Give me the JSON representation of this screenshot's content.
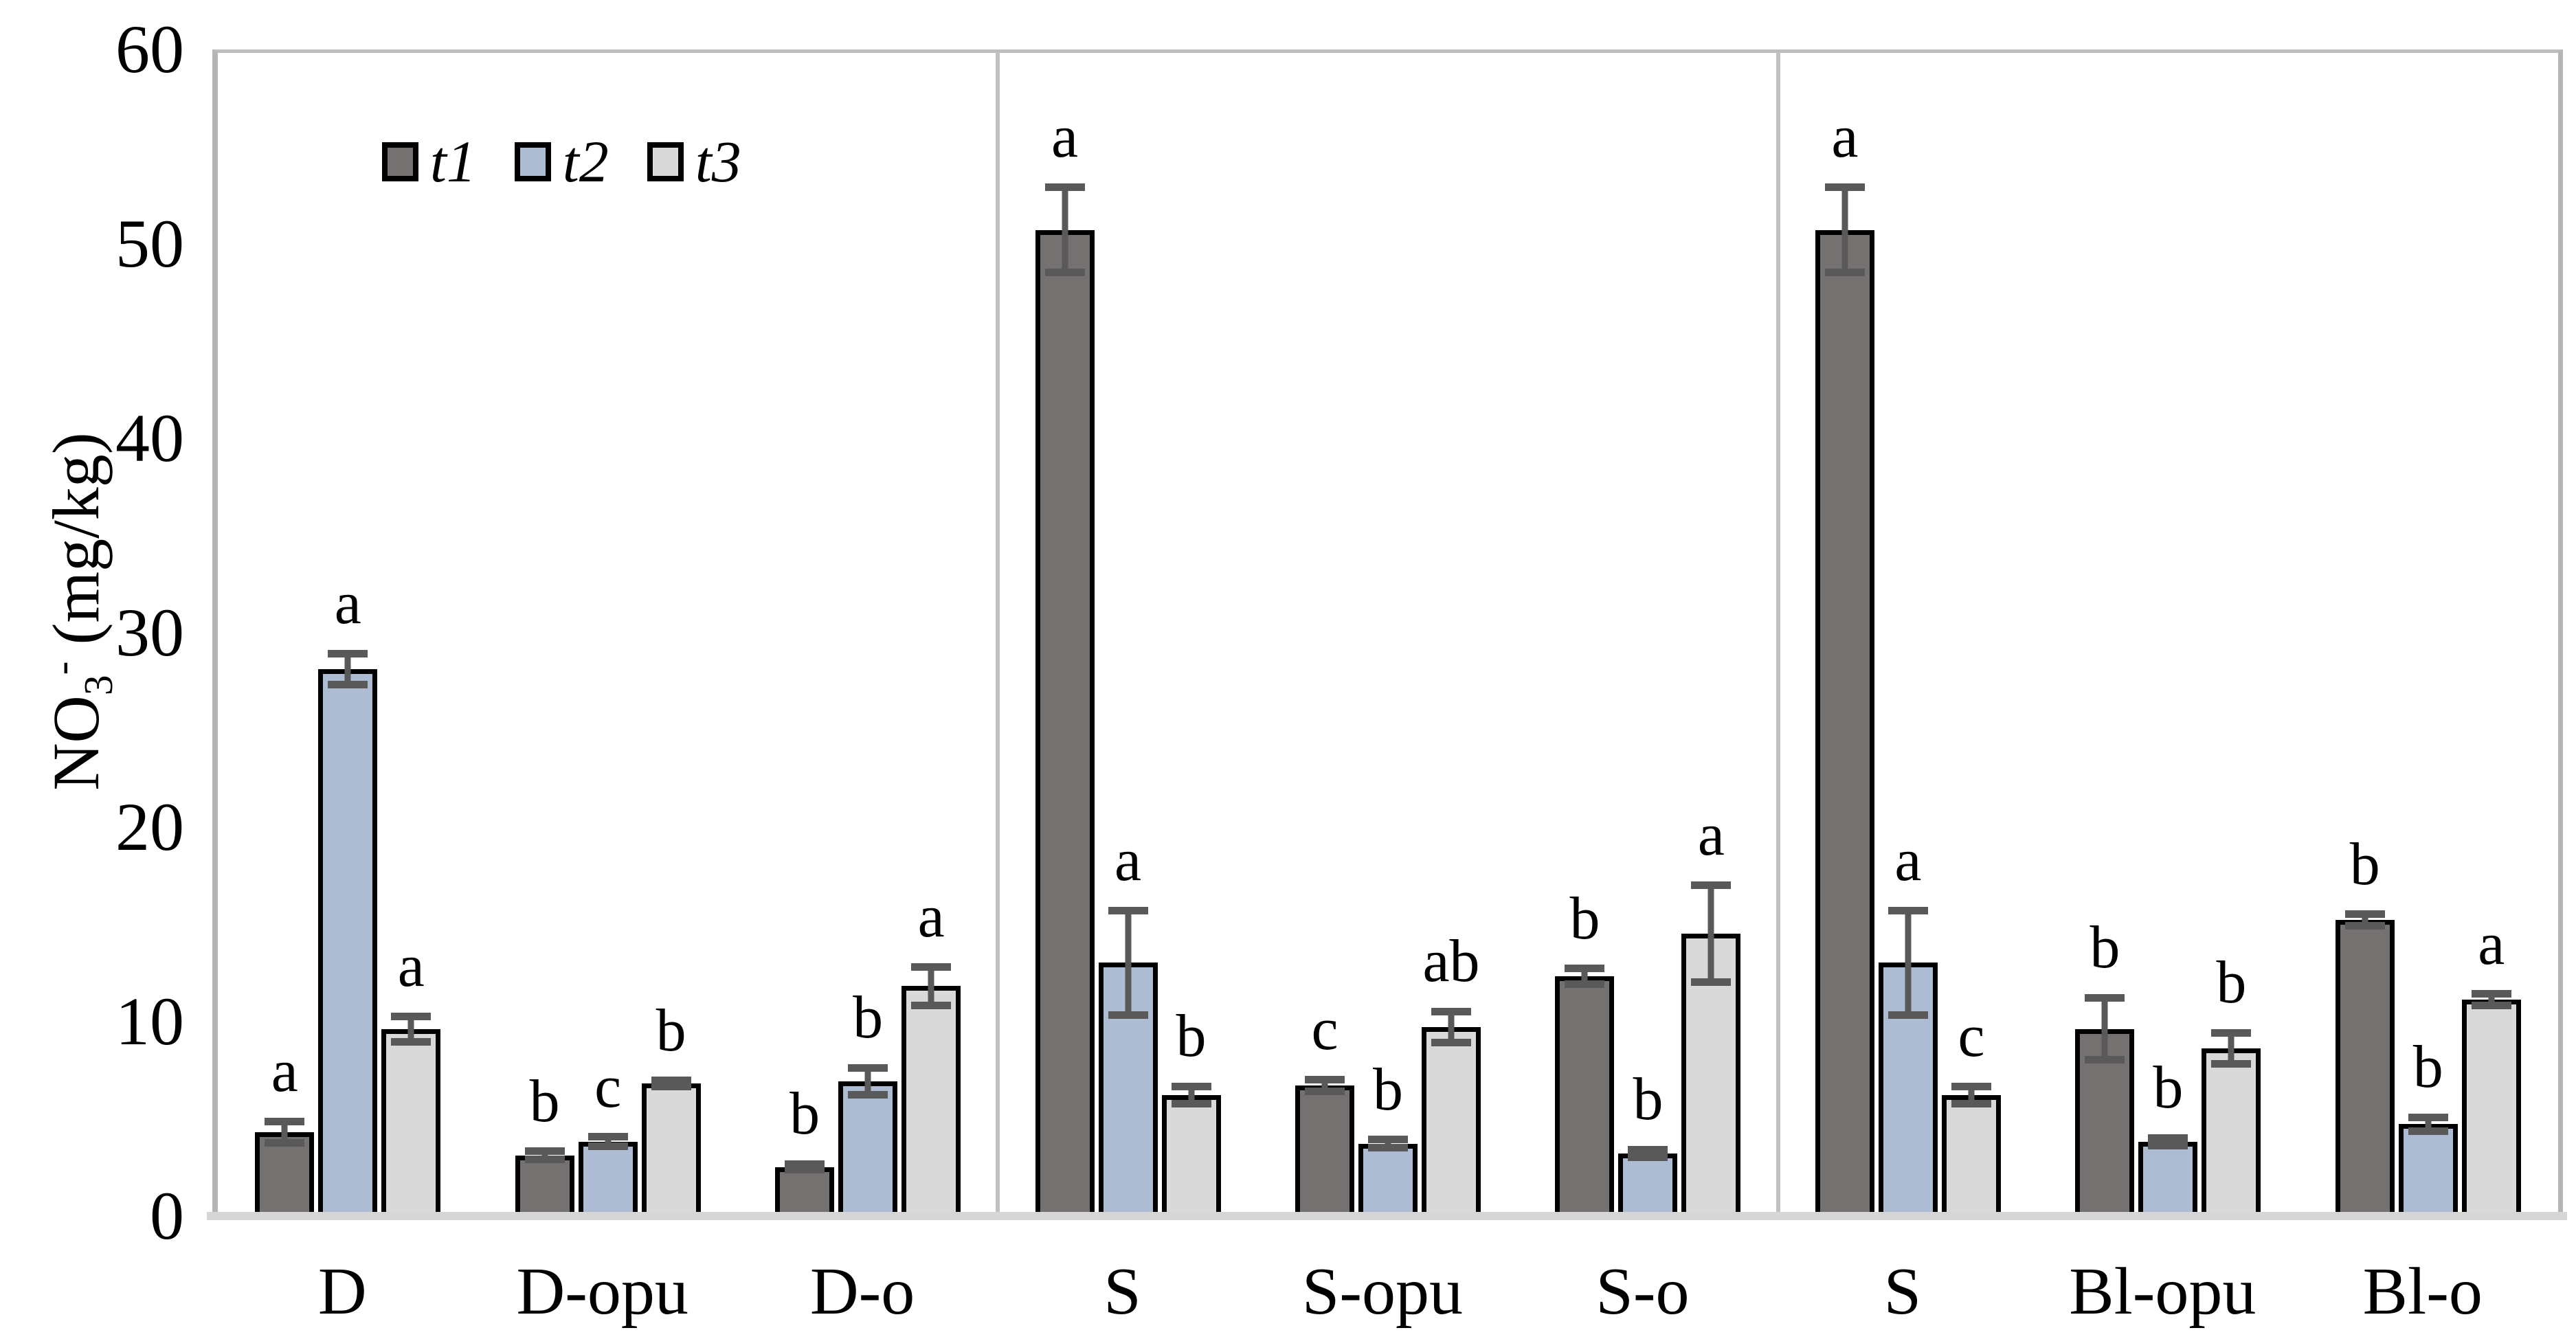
{
  "figure": {
    "background": "#ffffff",
    "text_color": "#000000"
  },
  "chart_data": {
    "type": "bar",
    "title": "",
    "xlabel": "",
    "ylabel": "NO3- (mg/kg)",
    "ylabel_parts": {
      "base": "NO",
      "sub": "3",
      "sup": "-",
      "unit": " (mg/kg)"
    },
    "ylim": [
      0,
      60
    ],
    "yticks": [
      0,
      10,
      20,
      30,
      40,
      50,
      60
    ],
    "grid": "off",
    "legend_position": "top-left-inside",
    "error_bars": true,
    "colors": {
      "t1": "#767171",
      "t2": "#aebcd3",
      "t3": "#d9d9d9",
      "bar_border": "#000000",
      "error_bar": "#595959",
      "frame": "#b5b5b5",
      "baseline": "#d6d6d6",
      "divider": "#c2c2c2"
    },
    "legend": [
      {
        "name": "t1",
        "color": "#767171"
      },
      {
        "name": "t2",
        "color": "#aebcd3"
      },
      {
        "name": "t3",
        "color": "#d9d9d9"
      }
    ],
    "panels": [
      {
        "groups": [
          {
            "label": "D",
            "bars": [
              {
                "series": "t1",
                "value": 4.5,
                "err": 0.55,
                "letter": "a"
              },
              {
                "series": "t2",
                "value": 28.3,
                "err": 0.8,
                "letter": "a"
              },
              {
                "series": "t3",
                "value": 9.8,
                "err": 0.65,
                "letter": "a"
              }
            ]
          },
          {
            "label": "D-opu",
            "bars": [
              {
                "series": "t1",
                "value": 3.3,
                "err": 0.2,
                "letter": "b"
              },
              {
                "series": "t2",
                "value": 4.0,
                "err": 0.25,
                "letter": "c"
              },
              {
                "series": "t3",
                "value": 7.0,
                "err": 0.15,
                "letter": "b"
              }
            ]
          },
          {
            "label": "D-o",
            "bars": [
              {
                "series": "t1",
                "value": 2.7,
                "err": 0.15,
                "letter": "b"
              },
              {
                "series": "t2",
                "value": 7.1,
                "err": 0.7,
                "letter": "b"
              },
              {
                "series": "t3",
                "value": 12.0,
                "err": 1.0,
                "letter": "a"
              }
            ]
          }
        ]
      },
      {
        "groups": [
          {
            "label": "S",
            "bars": [
              {
                "series": "t1",
                "value": 50.9,
                "err": 2.2,
                "letter": "a"
              },
              {
                "series": "t2",
                "value": 13.2,
                "err": 2.7,
                "letter": "a"
              },
              {
                "series": "t3",
                "value": 6.4,
                "err": 0.45,
                "letter": "b"
              }
            ]
          },
          {
            "label": "S-opu",
            "bars": [
              {
                "series": "t1",
                "value": 6.9,
                "err": 0.3,
                "letter": "c"
              },
              {
                "series": "t2",
                "value": 3.9,
                "err": 0.2,
                "letter": "b"
              },
              {
                "series": "t3",
                "value": 9.9,
                "err": 0.8,
                "letter": "ab"
              }
            ]
          },
          {
            "label": "S-o",
            "bars": [
              {
                "series": "t1",
                "value": 12.5,
                "err": 0.4,
                "letter": "b"
              },
              {
                "series": "t2",
                "value": 3.4,
                "err": 0.2,
                "letter": "b"
              },
              {
                "series": "t3",
                "value": 14.7,
                "err": 2.5,
                "letter": "a"
              }
            ]
          }
        ]
      },
      {
        "groups": [
          {
            "label": "S",
            "bars": [
              {
                "series": "t1",
                "value": 50.9,
                "err": 2.2,
                "letter": "a"
              },
              {
                "series": "t2",
                "value": 13.2,
                "err": 2.7,
                "letter": "a"
              },
              {
                "series": "t3",
                "value": 6.4,
                "err": 0.45,
                "letter": "c"
              }
            ]
          },
          {
            "label": "Bl-opu",
            "bars": [
              {
                "series": "t1",
                "value": 9.8,
                "err": 1.6,
                "letter": "b"
              },
              {
                "series": "t2",
                "value": 4.0,
                "err": 0.2,
                "letter": "b"
              },
              {
                "series": "t3",
                "value": 8.8,
                "err": 0.8,
                "letter": "b"
              }
            ]
          },
          {
            "label": "Bl-o",
            "bars": [
              {
                "series": "t1",
                "value": 15.4,
                "err": 0.3,
                "letter": "b"
              },
              {
                "series": "t2",
                "value": 4.9,
                "err": 0.35,
                "letter": "b"
              },
              {
                "series": "t3",
                "value": 11.3,
                "err": 0.3,
                "letter": "a"
              }
            ]
          }
        ]
      }
    ]
  }
}
